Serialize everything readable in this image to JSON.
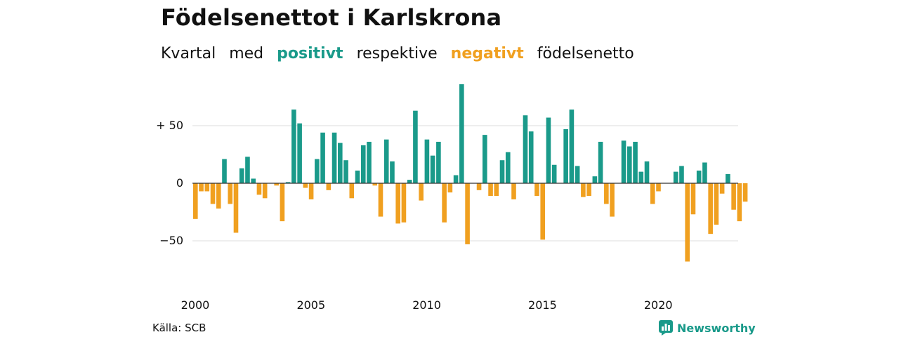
{
  "title": "Födelsenettot i Karlskrona",
  "subtitle": {
    "w1": "Kvartal",
    "w2": "med",
    "positive": "positivt",
    "w3": "respektive",
    "negative": "negativt",
    "w4": "födelsenetto"
  },
  "source": "Källa: SCB",
  "brand": "Newsworthy",
  "colors": {
    "positive": "#1a9a8a",
    "negative": "#f0a020",
    "grid": "#dddddd",
    "zero": "#333333"
  },
  "chart_data": {
    "type": "bar",
    "xlabel": "",
    "ylabel": "",
    "ylim": [
      -80,
      90
    ],
    "yticks": [
      {
        "value": 50,
        "label": "+ 50"
      },
      {
        "value": 0,
        "label": "0"
      },
      {
        "value": -50,
        "label": "−50"
      }
    ],
    "xticks": [
      "2000",
      "2005",
      "2010",
      "2015",
      "2020"
    ],
    "grid": true,
    "start": "2000 Q1",
    "values": [
      -31,
      -7,
      -7,
      -18,
      -22,
      21,
      -18,
      -43,
      13,
      23,
      4,
      -10,
      -13,
      0,
      -2,
      -33,
      1,
      64,
      52,
      -4,
      -14,
      21,
      44,
      -6,
      44,
      35,
      20,
      -13,
      11,
      33,
      36,
      -2,
      -29,
      38,
      19,
      -35,
      -34,
      3,
      63,
      -15,
      38,
      24,
      36,
      -34,
      -8,
      7,
      86,
      -53,
      0,
      -6,
      42,
      -11,
      -11,
      20,
      27,
      -14,
      0,
      59,
      45,
      -11,
      -49,
      57,
      16,
      0,
      47,
      64,
      15,
      -12,
      -11,
      6,
      36,
      -18,
      -29,
      0,
      37,
      32,
      36,
      10,
      19,
      -18,
      -7,
      0,
      0,
      10,
      15,
      -68,
      -27,
      11,
      18,
      -44,
      -36,
      -9,
      8,
      -23,
      -33,
      -16
    ]
  }
}
